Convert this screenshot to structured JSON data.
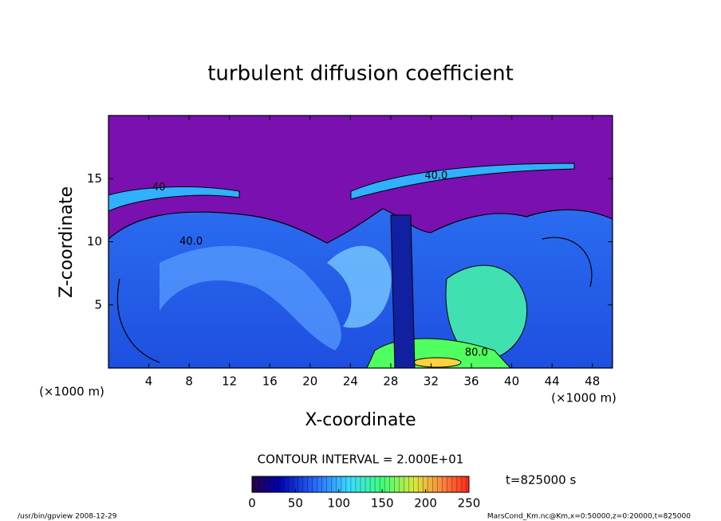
{
  "chart_data": {
    "type": "contour",
    "title": "turbulent diffusion coefficient",
    "xlabel": "X-coordinate",
    "ylabel": "Z-coordinate",
    "x_unit": "(×1000 m)",
    "y_unit": "(×1000 m)",
    "xlim": [
      0,
      50
    ],
    "xticks": [
      4,
      8,
      12,
      16,
      20,
      24,
      28,
      32,
      36,
      40,
      44,
      48
    ],
    "ylim": [
      0,
      20
    ],
    "yticks": [
      5,
      10,
      15
    ],
    "contour_labels": [
      {
        "x": 5,
        "y": 14.3,
        "value": 40,
        "label": "40"
      },
      {
        "x": 8.2,
        "y": 10,
        "value": 40,
        "label": "40.0"
      },
      {
        "x": 32.5,
        "y": 15.2,
        "value": 40,
        "label": "40.0"
      },
      {
        "x": 36.5,
        "y": 1.2,
        "value": 80,
        "label": "80.0"
      }
    ],
    "contour_interval": "CONTOUR INTERVAL = 2.000E+01",
    "time_label": "t=825000 s",
    "colorbar": {
      "lim": [
        0,
        250
      ],
      "ticks": [
        0,
        50,
        100,
        150,
        200,
        250
      ]
    },
    "footer_left": "/usr/bin/gpview  2008-12-29",
    "footer_right": "MarsCond_Km.nc@Km,x=0:50000,z=0:20000,t=825000"
  }
}
